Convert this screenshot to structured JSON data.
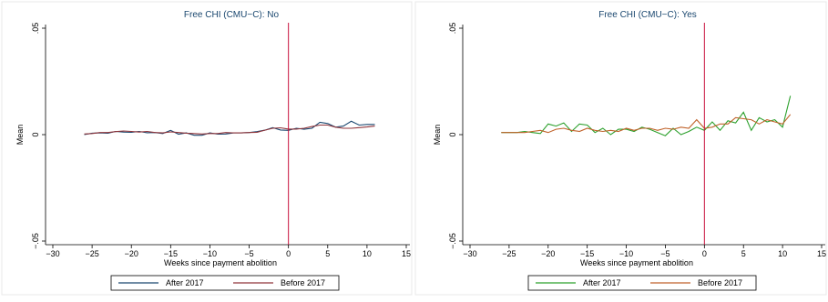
{
  "chart_data": [
    {
      "type": "line",
      "title": "Free CHI (CMU−C): No",
      "xlabel": "Weeks since payment abolition",
      "ylabel": "Mean",
      "xlim": [
        -30,
        15
      ],
      "ylim": [
        -0.05,
        0.05
      ],
      "xticks": [
        -30,
        -25,
        -20,
        -15,
        -10,
        -5,
        0,
        5,
        10,
        15
      ],
      "xtick_labels": [
        "−30",
        "−25",
        "−20",
        "−15",
        "−10",
        "−5",
        "0",
        "5",
        "10",
        "15"
      ],
      "yticks": [
        -0.05,
        0,
        0.05
      ],
      "ytick_labels": [
        "−.05",
        "0",
        ".05"
      ],
      "vline": 0,
      "vline_color": "#c8103b",
      "legend_position": "bottom",
      "x": [
        -26,
        -25,
        -24,
        -23,
        -22,
        -21,
        -20,
        -19,
        -18,
        -17,
        -16,
        -15,
        -14,
        -13,
        -12,
        -11,
        -10,
        -9,
        -8,
        -7,
        -6,
        -5,
        -4,
        -3,
        -2,
        -1,
        0,
        1,
        2,
        3,
        4,
        5,
        6,
        7,
        8,
        9,
        10,
        11
      ],
      "series": [
        {
          "name": "After 2017",
          "color": "#1a476f",
          "values": [
            0.0,
            0.0007,
            0.0008,
            0.0007,
            0.0015,
            0.0012,
            0.0011,
            0.0015,
            0.0009,
            0.001,
            0.0005,
            0.002,
            0.0002,
            0.0008,
            -0.0003,
            -0.0003,
            0.0008,
            0.0002,
            0.0003,
            0.0008,
            0.0008,
            0.001,
            0.0014,
            0.0021,
            0.0033,
            0.0022,
            0.002,
            0.003,
            0.0025,
            0.003,
            0.0058,
            0.0052,
            0.0035,
            0.004,
            0.0063,
            0.0045,
            0.0048,
            0.0048
          ]
        },
        {
          "name": "Before 2017",
          "color": "#90353b",
          "values": [
            0.0003,
            0.0005,
            0.001,
            0.001,
            0.0014,
            0.0017,
            0.0015,
            0.0012,
            0.0015,
            0.001,
            0.0008,
            0.0013,
            0.001,
            0.0007,
            0.0005,
            0.0003,
            0.0005,
            0.0005,
            0.001,
            0.0008,
            0.0008,
            0.001,
            0.0011,
            0.0021,
            0.003,
            0.0032,
            0.0026,
            0.0026,
            0.003,
            0.0038,
            0.0045,
            0.0045,
            0.0035,
            0.003,
            0.003,
            0.0033,
            0.0036,
            0.004
          ]
        }
      ]
    },
    {
      "type": "line",
      "title": "Free CHI (CMU−C): Yes",
      "xlabel": "Weeks since payment abolition",
      "ylabel": "Mean",
      "xlim": [
        -30,
        15
      ],
      "ylim": [
        -0.05,
        0.05
      ],
      "xticks": [
        -30,
        -25,
        -20,
        -15,
        -10,
        -5,
        0,
        5,
        10,
        15
      ],
      "xtick_labels": [
        "−30",
        "−25",
        "−20",
        "−15",
        "−10",
        "−5",
        "0",
        "5",
        "10",
        "15"
      ],
      "yticks": [
        -0.05,
        0,
        0.05
      ],
      "ytick_labels": [
        "−.05",
        "0",
        ".05"
      ],
      "vline": 0,
      "vline_color": "#c8103b",
      "legend_position": "bottom",
      "x": [
        -26,
        -25,
        -24,
        -23,
        -22,
        -21,
        -20,
        -19,
        -18,
        -17,
        -16,
        -15,
        -14,
        -13,
        -12,
        -11,
        -10,
        -9,
        -8,
        -7,
        -6,
        -5,
        -4,
        -3,
        -2,
        -1,
        0,
        1,
        2,
        3,
        4,
        5,
        6,
        7,
        8,
        9,
        10,
        11
      ],
      "series": [
        {
          "name": "After 2017",
          "color": "#2ca02c",
          "values": [
            0.001,
            0.001,
            0.001,
            0.0015,
            0.001,
            0.0005,
            0.005,
            0.004,
            0.0055,
            0.0015,
            0.005,
            0.0045,
            0.001,
            0.003,
            0.0,
            0.0025,
            0.0025,
            0.0015,
            0.0035,
            0.0025,
            0.001,
            -0.0005,
            0.003,
            0.0,
            0.0015,
            0.0035,
            0.002,
            0.006,
            0.002,
            0.0065,
            0.0055,
            0.0105,
            0.002,
            0.008,
            0.006,
            0.007,
            0.0035,
            0.0182
          ]
        },
        {
          "name": "Before 2017",
          "color": "#c0622a",
          "values": [
            0.001,
            0.001,
            0.001,
            0.001,
            0.0015,
            0.002,
            0.001,
            0.0025,
            0.003,
            0.002,
            0.0015,
            0.003,
            0.002,
            0.0015,
            0.002,
            0.0015,
            0.003,
            0.002,
            0.003,
            0.003,
            0.002,
            0.003,
            0.0025,
            0.0035,
            0.003,
            0.007,
            0.003,
            0.0035,
            0.005,
            0.005,
            0.008,
            0.0075,
            0.007,
            0.005,
            0.007,
            0.006,
            0.005,
            0.0095
          ]
        }
      ]
    }
  ]
}
